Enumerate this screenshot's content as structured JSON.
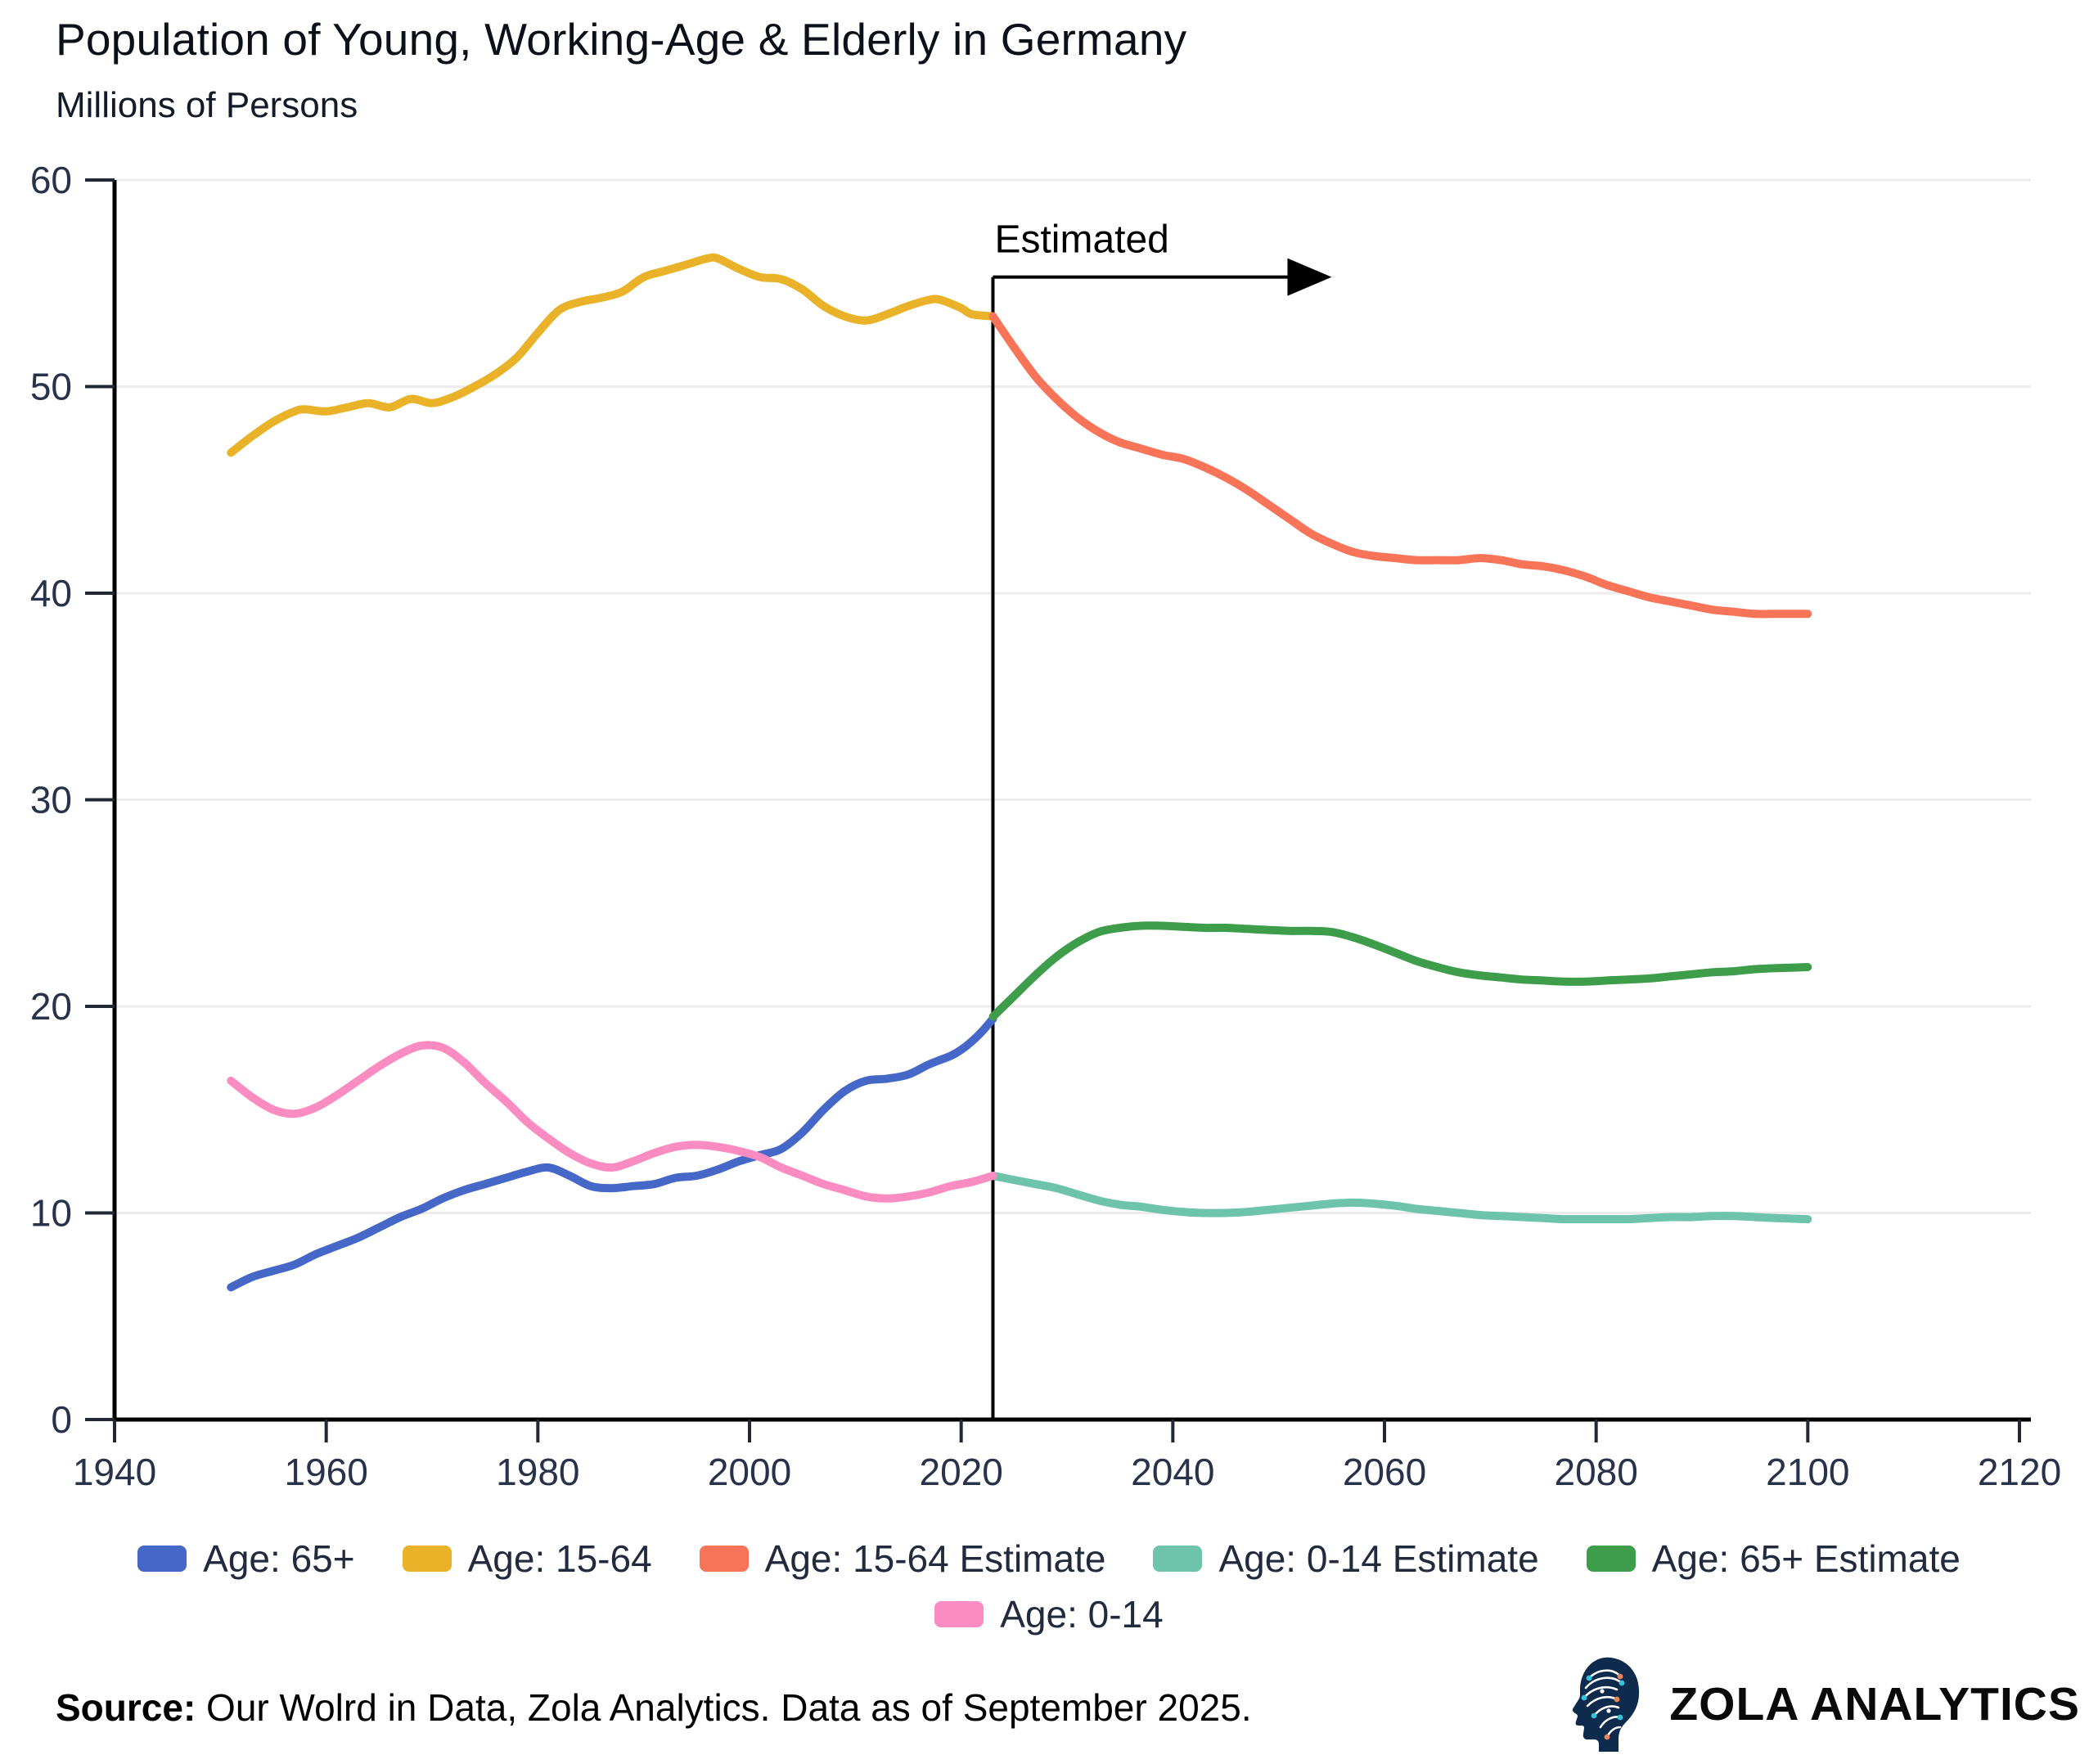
{
  "title": "Population of Young, Working-Age & Elderly in Germany",
  "subtitle": "Millions of Persons",
  "source": {
    "prefix": "Source:",
    "text": " Our Wolrd in Data, Zola Analytics. Data as of September 2025."
  },
  "brand": {
    "name": "ZOLA ANALYTICS",
    "icon": "brain-head-icon"
  },
  "colors": {
    "age_65": "#4567C8",
    "age_15_64": "#EAB228",
    "age_15_64_estimate": "#F87459",
    "age_0_14_estimate": "#6EC4AB",
    "age_65_estimate": "#3D9D4B",
    "age_0_14": "#FA8CC2",
    "grid": "#ECECEC",
    "axis": "#000000",
    "tick_text": "#28324A"
  },
  "legend": {
    "rows": [
      [
        {
          "label": "Age: 65+",
          "color": "#4567C8"
        },
        {
          "label": "Age: 15-64",
          "color": "#EAB228"
        },
        {
          "label": "Age: 15-64 Estimate",
          "color": "#F87459"
        },
        {
          "label": "Age: 0-14 Estimate",
          "color": "#6EC4AB"
        },
        {
          "label": "Age: 65+ Estimate",
          "color": "#3D9D4B"
        }
      ],
      [
        {
          "label": "Age: 0-14",
          "color": "#FA8CC2"
        }
      ]
    ]
  },
  "chart_data": {
    "type": "line",
    "title": "Population of Young, Working-Age & Elderly in Germany",
    "ylabel": "Millions of Persons",
    "xlabel": "",
    "grid": "horizontal",
    "legend_position": "bottom",
    "x_axis": {
      "range": [
        1940,
        2120
      ],
      "ticks": [
        1940,
        1960,
        1980,
        2000,
        2020,
        2040,
        2060,
        2080,
        2100,
        2120
      ]
    },
    "y_axis": {
      "range": [
        0,
        60
      ],
      "ticks": [
        0,
        10,
        20,
        30,
        40,
        50,
        60
      ]
    },
    "annotation": {
      "label": "Estimated",
      "x": 2023,
      "arrow_y": 55.3
    },
    "series": [
      {
        "name": "Age: 15-64",
        "color": "#EAB228",
        "points": [
          [
            1951,
            46.8
          ],
          [
            1953,
            47.6
          ],
          [
            1955,
            48.3
          ],
          [
            1957,
            48.8
          ],
          [
            1958,
            48.9
          ],
          [
            1960,
            48.8
          ],
          [
            1962,
            49.0
          ],
          [
            1964,
            49.2
          ],
          [
            1966,
            49.0
          ],
          [
            1968,
            49.4
          ],
          [
            1970,
            49.2
          ],
          [
            1972,
            49.5
          ],
          [
            1974,
            50.0
          ],
          [
            1976,
            50.6
          ],
          [
            1978,
            51.4
          ],
          [
            1980,
            52.6
          ],
          [
            1982,
            53.7
          ],
          [
            1984,
            54.1
          ],
          [
            1986,
            54.3
          ],
          [
            1988,
            54.6
          ],
          [
            1990,
            55.3
          ],
          [
            1992,
            55.6
          ],
          [
            1994,
            55.9
          ],
          [
            1996,
            56.2
          ],
          [
            1997,
            56.2
          ],
          [
            1999,
            55.7
          ],
          [
            2001,
            55.3
          ],
          [
            2003,
            55.2
          ],
          [
            2005,
            54.7
          ],
          [
            2007,
            53.9
          ],
          [
            2009,
            53.4
          ],
          [
            2011,
            53.2
          ],
          [
            2013,
            53.5
          ],
          [
            2015,
            53.9
          ],
          [
            2017,
            54.2
          ],
          [
            2018,
            54.2
          ],
          [
            2020,
            53.8
          ],
          [
            2021,
            53.5
          ],
          [
            2023,
            53.4
          ]
        ]
      },
      {
        "name": "Age: 65+",
        "color": "#4567C8",
        "points": [
          [
            1951,
            6.4
          ],
          [
            1953,
            6.9
          ],
          [
            1955,
            7.2
          ],
          [
            1957,
            7.5
          ],
          [
            1959,
            8.0
          ],
          [
            1961,
            8.4
          ],
          [
            1963,
            8.8
          ],
          [
            1965,
            9.3
          ],
          [
            1967,
            9.8
          ],
          [
            1969,
            10.2
          ],
          [
            1971,
            10.7
          ],
          [
            1973,
            11.1
          ],
          [
            1975,
            11.4
          ],
          [
            1977,
            11.7
          ],
          [
            1979,
            12.0
          ],
          [
            1981,
            12.2
          ],
          [
            1983,
            11.8
          ],
          [
            1985,
            11.3
          ],
          [
            1987,
            11.2
          ],
          [
            1989,
            11.3
          ],
          [
            1991,
            11.4
          ],
          [
            1993,
            11.7
          ],
          [
            1995,
            11.8
          ],
          [
            1997,
            12.1
          ],
          [
            1999,
            12.5
          ],
          [
            2001,
            12.8
          ],
          [
            2003,
            13.1
          ],
          [
            2005,
            13.9
          ],
          [
            2007,
            15.0
          ],
          [
            2009,
            15.9
          ],
          [
            2011,
            16.4
          ],
          [
            2013,
            16.5
          ],
          [
            2015,
            16.7
          ],
          [
            2017,
            17.2
          ],
          [
            2019,
            17.6
          ],
          [
            2020,
            17.9
          ],
          [
            2021,
            18.3
          ],
          [
            2022,
            18.8
          ],
          [
            2023,
            19.4
          ]
        ]
      },
      {
        "name": "Age: 15-64 Estimate",
        "color": "#F87459",
        "points": [
          [
            2023,
            53.4
          ],
          [
            2025,
            51.9
          ],
          [
            2027,
            50.5
          ],
          [
            2029,
            49.4
          ],
          [
            2031,
            48.5
          ],
          [
            2033,
            47.8
          ],
          [
            2035,
            47.3
          ],
          [
            2037,
            47.0
          ],
          [
            2039,
            46.7
          ],
          [
            2041,
            46.5
          ],
          [
            2043,
            46.1
          ],
          [
            2045,
            45.6
          ],
          [
            2047,
            45.0
          ],
          [
            2049,
            44.3
          ],
          [
            2051,
            43.6
          ],
          [
            2053,
            42.9
          ],
          [
            2055,
            42.4
          ],
          [
            2057,
            42.0
          ],
          [
            2059,
            41.8
          ],
          [
            2061,
            41.7
          ],
          [
            2063,
            41.6
          ],
          [
            2065,
            41.6
          ],
          [
            2067,
            41.6
          ],
          [
            2069,
            41.7
          ],
          [
            2071,
            41.6
          ],
          [
            2073,
            41.4
          ],
          [
            2075,
            41.3
          ],
          [
            2077,
            41.1
          ],
          [
            2079,
            40.8
          ],
          [
            2081,
            40.4
          ],
          [
            2083,
            40.1
          ],
          [
            2085,
            39.8
          ],
          [
            2087,
            39.6
          ],
          [
            2089,
            39.4
          ],
          [
            2091,
            39.2
          ],
          [
            2093,
            39.1
          ],
          [
            2095,
            39.0
          ],
          [
            2097,
            39.0
          ],
          [
            2100,
            39.0
          ]
        ]
      },
      {
        "name": "Age: 0-14 Estimate",
        "color": "#6EC4AB",
        "points": [
          [
            2023,
            11.8
          ],
          [
            2025,
            11.6
          ],
          [
            2027,
            11.4
          ],
          [
            2029,
            11.2
          ],
          [
            2031,
            10.9
          ],
          [
            2033,
            10.6
          ],
          [
            2035,
            10.4
          ],
          [
            2037,
            10.3
          ],
          [
            2039,
            10.15
          ],
          [
            2041,
            10.05
          ],
          [
            2043,
            10.0
          ],
          [
            2045,
            10.0
          ],
          [
            2047,
            10.05
          ],
          [
            2049,
            10.15
          ],
          [
            2051,
            10.25
          ],
          [
            2053,
            10.35
          ],
          [
            2055,
            10.45
          ],
          [
            2057,
            10.5
          ],
          [
            2059,
            10.45
          ],
          [
            2061,
            10.35
          ],
          [
            2063,
            10.2
          ],
          [
            2065,
            10.1
          ],
          [
            2067,
            10.0
          ],
          [
            2069,
            9.9
          ],
          [
            2071,
            9.85
          ],
          [
            2073,
            9.8
          ],
          [
            2075,
            9.75
          ],
          [
            2077,
            9.7
          ],
          [
            2079,
            9.7
          ],
          [
            2081,
            9.7
          ],
          [
            2083,
            9.7
          ],
          [
            2085,
            9.75
          ],
          [
            2087,
            9.8
          ],
          [
            2089,
            9.8
          ],
          [
            2091,
            9.85
          ],
          [
            2093,
            9.85
          ],
          [
            2095,
            9.8
          ],
          [
            2097,
            9.75
          ],
          [
            2100,
            9.7
          ]
        ]
      },
      {
        "name": "Age: 65+ Estimate",
        "color": "#3D9D4B",
        "points": [
          [
            2023,
            19.5
          ],
          [
            2025,
            20.5
          ],
          [
            2027,
            21.5
          ],
          [
            2029,
            22.4
          ],
          [
            2031,
            23.1
          ],
          [
            2033,
            23.6
          ],
          [
            2035,
            23.8
          ],
          [
            2037,
            23.9
          ],
          [
            2039,
            23.9
          ],
          [
            2041,
            23.85
          ],
          [
            2043,
            23.8
          ],
          [
            2045,
            23.8
          ],
          [
            2047,
            23.75
          ],
          [
            2049,
            23.7
          ],
          [
            2051,
            23.65
          ],
          [
            2053,
            23.65
          ],
          [
            2055,
            23.6
          ],
          [
            2057,
            23.35
          ],
          [
            2059,
            23.0
          ],
          [
            2061,
            22.6
          ],
          [
            2063,
            22.2
          ],
          [
            2065,
            21.9
          ],
          [
            2067,
            21.65
          ],
          [
            2069,
            21.5
          ],
          [
            2071,
            21.4
          ],
          [
            2073,
            21.3
          ],
          [
            2075,
            21.25
          ],
          [
            2077,
            21.2
          ],
          [
            2079,
            21.2
          ],
          [
            2081,
            21.25
          ],
          [
            2083,
            21.3
          ],
          [
            2085,
            21.35
          ],
          [
            2087,
            21.45
          ],
          [
            2089,
            21.55
          ],
          [
            2091,
            21.65
          ],
          [
            2093,
            21.7
          ],
          [
            2095,
            21.8
          ],
          [
            2097,
            21.85
          ],
          [
            2100,
            21.9
          ]
        ]
      },
      {
        "name": "Age: 0-14",
        "color": "#FA8CC2",
        "points": [
          [
            1951,
            16.4
          ],
          [
            1953,
            15.6
          ],
          [
            1955,
            15.0
          ],
          [
            1957,
            14.8
          ],
          [
            1959,
            15.1
          ],
          [
            1961,
            15.7
          ],
          [
            1963,
            16.4
          ],
          [
            1965,
            17.1
          ],
          [
            1967,
            17.7
          ],
          [
            1969,
            18.1
          ],
          [
            1971,
            18.0
          ],
          [
            1973,
            17.3
          ],
          [
            1975,
            16.3
          ],
          [
            1977,
            15.4
          ],
          [
            1979,
            14.4
          ],
          [
            1981,
            13.6
          ],
          [
            1983,
            12.9
          ],
          [
            1985,
            12.4
          ],
          [
            1987,
            12.2
          ],
          [
            1989,
            12.5
          ],
          [
            1991,
            12.9
          ],
          [
            1993,
            13.2
          ],
          [
            1995,
            13.3
          ],
          [
            1997,
            13.2
          ],
          [
            1999,
            13.0
          ],
          [
            2001,
            12.7
          ],
          [
            2003,
            12.2
          ],
          [
            2005,
            11.8
          ],
          [
            2007,
            11.4
          ],
          [
            2009,
            11.1
          ],
          [
            2011,
            10.8
          ],
          [
            2013,
            10.7
          ],
          [
            2015,
            10.8
          ],
          [
            2017,
            11.0
          ],
          [
            2019,
            11.3
          ],
          [
            2021,
            11.5
          ],
          [
            2023,
            11.8
          ]
        ]
      }
    ]
  }
}
